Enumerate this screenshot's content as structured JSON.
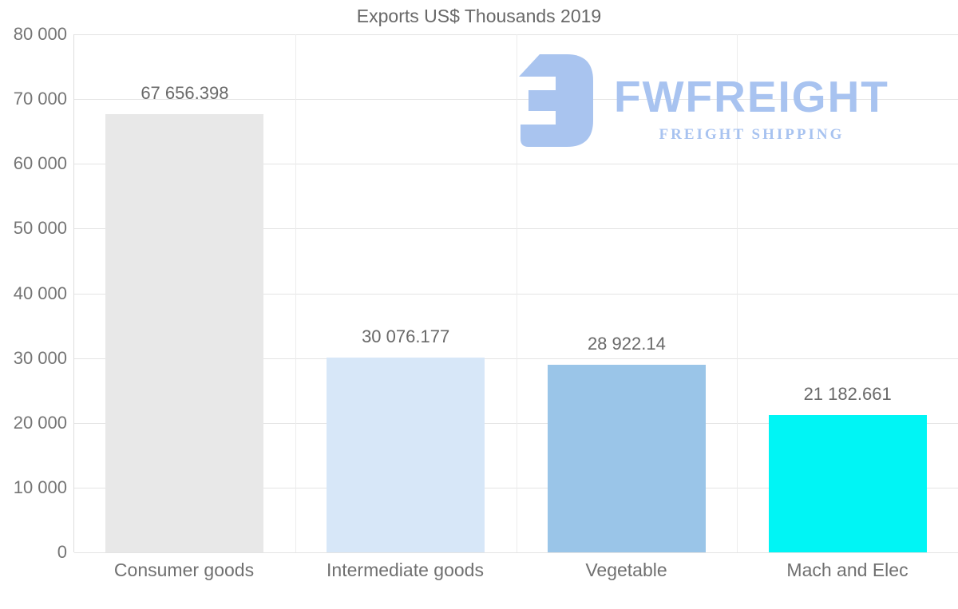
{
  "chart": {
    "title": "Exports US$ Thousands 2019"
  },
  "logo": {
    "name": "FWFREIGHT",
    "tagline": "FREIGHT SHIPPING",
    "color": "#a8c3f0",
    "mark_icon": "fwfreight-mirrored-f-mark"
  },
  "chart_data": {
    "type": "bar",
    "title": "Exports US$ Thousands 2019",
    "categories": [
      "Consumer goods",
      "Intermediate goods",
      "Vegetable",
      "Mach and Elec"
    ],
    "values": [
      67656.398,
      30076.177,
      28922.14,
      21182.661
    ],
    "value_labels": [
      "67 656.398",
      "30 076.177",
      "28 922.14",
      "21 182.661"
    ],
    "bar_colors": [
      "#e8e8e8",
      "#d7e7f8",
      "#9ac5e8",
      "#00f5f5"
    ],
    "xlabel": "",
    "ylabel": "",
    "ylim": [
      0,
      80000
    ],
    "yticks": [
      0,
      10000,
      20000,
      30000,
      40000,
      50000,
      60000,
      70000,
      80000
    ],
    "ytick_labels": [
      "0",
      "10 000",
      "20 000",
      "30 000",
      "40 000",
      "50 000",
      "60 000",
      "70 000",
      "80 000"
    ],
    "grid": "horizontal gridlines plus vertical category separators, light gray",
    "legend": "none"
  },
  "colors": {
    "background": "#ffffff",
    "gridline": "#e4e4e4",
    "axis_text": "#757575",
    "title_text": "#686868",
    "logo_blue": "#a8c3f0"
  }
}
